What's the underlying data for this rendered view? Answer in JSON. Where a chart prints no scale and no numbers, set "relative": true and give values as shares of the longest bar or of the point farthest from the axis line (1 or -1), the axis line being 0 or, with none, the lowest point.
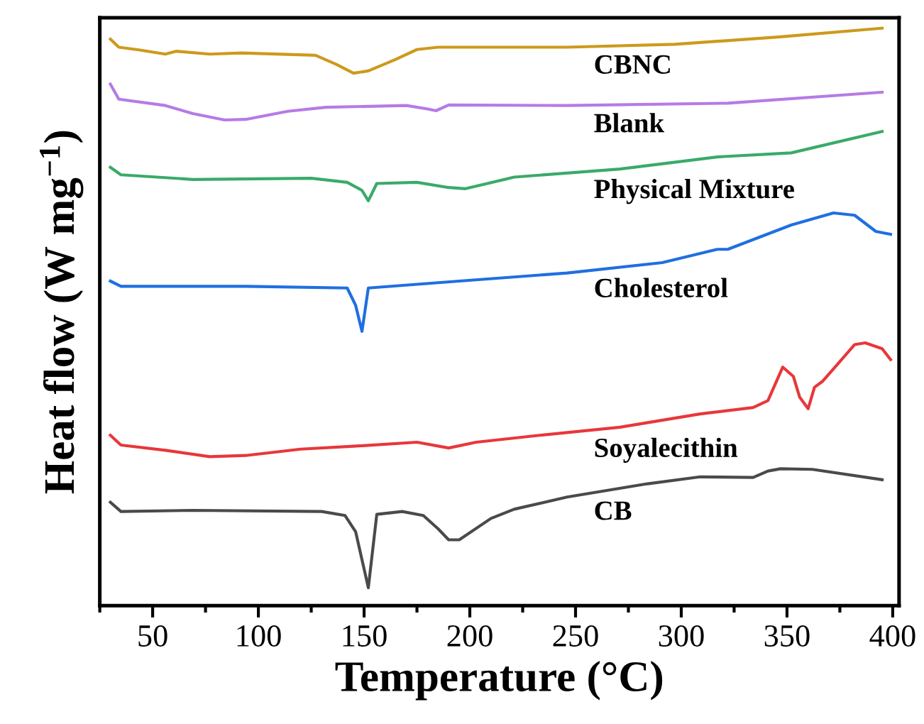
{
  "chart_data": {
    "type": "line",
    "relative": true,
    "xlabel": "Temperature (°C)",
    "ylabel": "Heat flow (W mg$^{−1}$)",
    "xlim": [
      25,
      403
    ],
    "xticks": [
      {
        "value": 25,
        "label": null
      },
      50,
      {
        "value": 75,
        "label": null
      },
      100,
      {
        "value": 125,
        "label": null
      },
      150,
      {
        "value": 175,
        "label": null
      },
      200,
      {
        "value": 225,
        "label": null
      },
      250,
      {
        "value": 275,
        "label": null
      },
      300,
      {
        "value": 325,
        "label": null
      },
      350,
      {
        "value": 375,
        "label": null
      },
      400
    ],
    "tick_labels": "x",
    "grid": false,
    "legend": false,
    "marker": "none",
    "line_style": "solid",
    "series": [
      {
        "name": "CBNC",
        "color": "#cc9a1c",
        "x": [
          30,
          34,
          44,
          56,
          61,
          77,
          92,
          127,
          137,
          145,
          152,
          165,
          175,
          185,
          246,
          297,
          347,
          395
        ],
        "values": [
          0.981,
          0.967,
          0.962,
          0.955,
          0.96,
          0.955,
          0.957,
          0.953,
          0.937,
          0.922,
          0.926,
          0.946,
          0.963,
          0.967,
          0.967,
          0.972,
          0.985,
          1.0
        ]
      },
      {
        "name": "Blank",
        "color": "#b57be6",
        "x": [
          30,
          34,
          56,
          69,
          84,
          94,
          114,
          132,
          170,
          180,
          184,
          190,
          246,
          322,
          395
        ],
        "values": [
          0.903,
          0.877,
          0.866,
          0.852,
          0.841,
          0.842,
          0.856,
          0.863,
          0.866,
          0.86,
          0.857,
          0.867,
          0.866,
          0.87,
          0.889
        ]
      },
      {
        "name": "Physical Mixture",
        "color": "#3aaa6a",
        "x": [
          30,
          35,
          69,
          125,
          142,
          149,
          152,
          156,
          175,
          190,
          198,
          221,
          271,
          317,
          352,
          395
        ],
        "values": [
          0.759,
          0.746,
          0.738,
          0.74,
          0.733,
          0.719,
          0.701,
          0.731,
          0.733,
          0.724,
          0.722,
          0.742,
          0.756,
          0.777,
          0.784,
          0.821
        ]
      },
      {
        "name": "Cholesterol",
        "color": "#1f6fe0",
        "x": [
          30,
          35,
          94,
          142,
          146,
          149,
          152,
          195,
          246,
          291,
          317,
          322,
          352,
          372,
          382,
          392,
          399
        ],
        "values": [
          0.562,
          0.553,
          0.553,
          0.55,
          0.52,
          0.475,
          0.55,
          0.562,
          0.576,
          0.594,
          0.617,
          0.617,
          0.659,
          0.68,
          0.676,
          0.648,
          0.643
        ]
      },
      {
        "name": "Soyalecithin",
        "color": "#e8373a",
        "x": [
          30,
          35,
          56,
          77,
          94,
          120,
          145,
          175,
          190,
          203,
          233,
          271,
          309,
          334,
          341,
          348,
          353,
          356,
          360,
          363,
          367,
          382,
          387,
          395,
          399
        ],
        "values": [
          0.295,
          0.278,
          0.269,
          0.258,
          0.26,
          0.271,
          0.276,
          0.283,
          0.273,
          0.283,
          0.295,
          0.309,
          0.332,
          0.343,
          0.355,
          0.413,
          0.397,
          0.361,
          0.341,
          0.378,
          0.389,
          0.452,
          0.455,
          0.445,
          0.426
        ]
      },
      {
        "name": "CB",
        "color": "#4a4a4a",
        "x": [
          30,
          35,
          69,
          130,
          141,
          146,
          152,
          156,
          168,
          178,
          185,
          190,
          195,
          210,
          221,
          246,
          284,
          309,
          334,
          341,
          347,
          362,
          395
        ],
        "values": [
          0.179,
          0.163,
          0.165,
          0.163,
          0.156,
          0.128,
          0.031,
          0.158,
          0.163,
          0.156,
          0.133,
          0.114,
          0.114,
          0.151,
          0.167,
          0.188,
          0.211,
          0.223,
          0.222,
          0.233,
          0.237,
          0.236,
          0.218
        ]
      }
    ]
  }
}
